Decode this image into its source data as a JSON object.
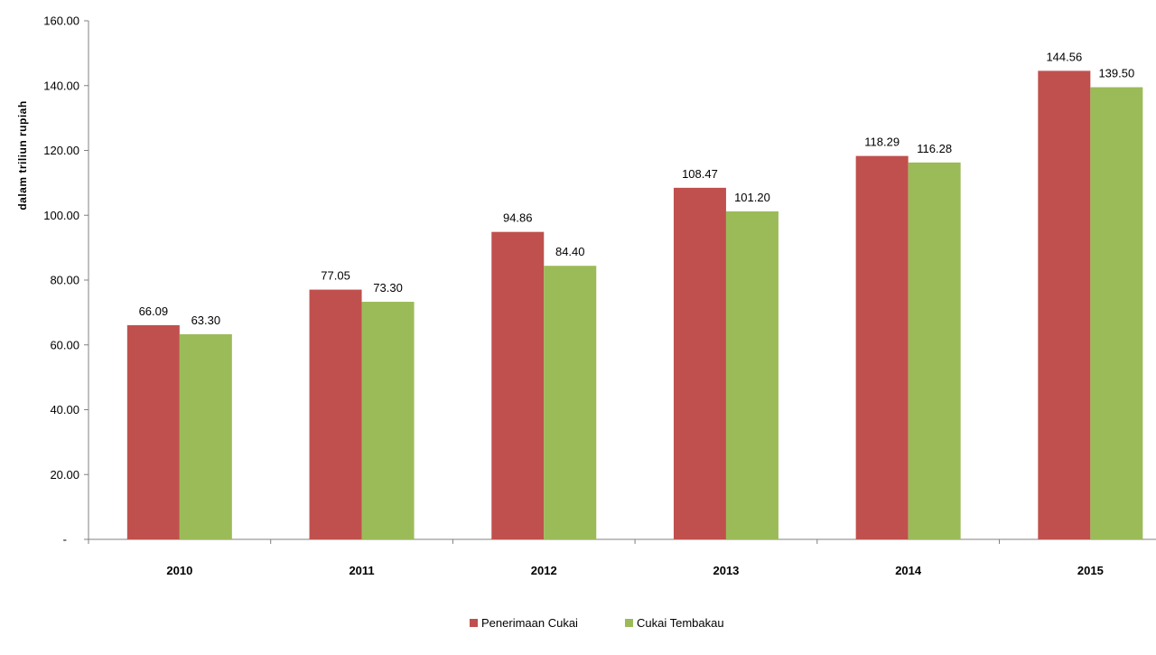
{
  "chart_data": {
    "type": "bar",
    "title": "",
    "xlabel": "",
    "ylabel": "dalam triliun rupiah",
    "ylim": [
      0,
      160
    ],
    "yticks": [
      0,
      20,
      40,
      60,
      80,
      100,
      120,
      140,
      160
    ],
    "ytick_labels": [
      "-",
      "20.00",
      "40.00",
      "60.00",
      "80.00",
      "100.00",
      "120.00",
      "140.00",
      "160.00"
    ],
    "grid": false,
    "legend_position": "bottom",
    "categories": [
      "2010",
      "2011",
      "2012",
      "2013",
      "2014",
      "2015"
    ],
    "series": [
      {
        "name": "Penerimaan Cukai",
        "color": "#c0504d",
        "values": [
          66.09,
          77.05,
          94.86,
          108.47,
          118.29,
          144.56
        ],
        "labels": [
          "66.09",
          "77.05",
          "94.86",
          "108.47",
          "118.29",
          "144.56"
        ]
      },
      {
        "name": "Cukai Tembakau",
        "color": "#9bbb59",
        "values": [
          63.3,
          73.3,
          84.4,
          101.2,
          116.28,
          139.5
        ],
        "labels": [
          "63.30",
          "73.30",
          "84.40",
          "101.20",
          "116.28",
          "139.50"
        ]
      }
    ]
  }
}
